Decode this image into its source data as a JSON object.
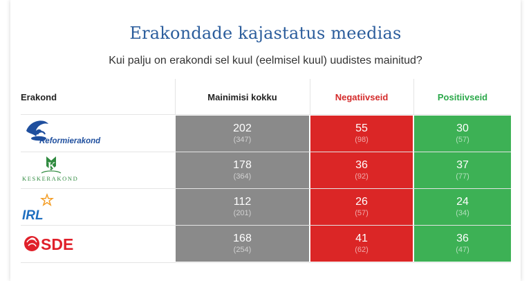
{
  "title": "Erakondade kajastatus meedias",
  "subtitle": "Kui palju on erakondi sel kuul (eelmisel kuul) uudistes mainitud?",
  "colors": {
    "title": "#2b5d9c",
    "total": "#8a8a8a",
    "negative": "#db2626",
    "positive": "#3db155",
    "negative_header": "#d42a2a",
    "positive_header": "#2ba84a"
  },
  "table": {
    "headers": {
      "party": "Erakond",
      "total": "Mainimisi kokku",
      "negative": "Negatiivseid",
      "positive": "Positiivseid"
    },
    "rows": [
      {
        "logo_text": "Reformierakond",
        "logo_icon": "reform-squirrel-logo",
        "total": "202",
        "total_prev": "(347)",
        "negative": "55",
        "negative_prev": "(98)",
        "positive": "30",
        "positive_prev": "(57)"
      },
      {
        "logo_text": "KESKERAKOND",
        "logo_icon": "kesk-k-logo",
        "total": "178",
        "total_prev": "(364)",
        "negative": "36",
        "negative_prev": "(92)",
        "positive": "37",
        "positive_prev": "(77)"
      },
      {
        "logo_text": "IRL",
        "logo_icon": "irl-star-logo",
        "total": "112",
        "total_prev": "(201)",
        "negative": "26",
        "negative_prev": "(57)",
        "positive": "24",
        "positive_prev": "(34)"
      },
      {
        "logo_text": "SDE",
        "logo_icon": "sde-rose-logo",
        "total": "168",
        "total_prev": "(254)",
        "negative": "41",
        "negative_prev": "(62)",
        "positive": "36",
        "positive_prev": "(47)"
      }
    ]
  },
  "chart_data": {
    "type": "table",
    "title": "Erakondade kajastatus meedias",
    "subtitle": "Kui palju on erakondi sel kuul (eelmisel kuul) uudistes mainitud?",
    "columns": [
      "Erakond",
      "Mainimisi kokku",
      "Negatiivseid",
      "Positiivseid"
    ],
    "categories": [
      "Reformierakond",
      "Keskerakond",
      "IRL",
      "SDE"
    ],
    "series": [
      {
        "name": "Mainimisi kokku",
        "values": [
          202,
          178,
          112,
          168
        ],
        "previous": [
          347,
          364,
          201,
          254
        ]
      },
      {
        "name": "Negatiivseid",
        "values": [
          55,
          36,
          26,
          41
        ],
        "previous": [
          98,
          92,
          57,
          62
        ]
      },
      {
        "name": "Positiivseid",
        "values": [
          30,
          37,
          24,
          36
        ],
        "previous": [
          57,
          77,
          34,
          47
        ]
      }
    ]
  }
}
